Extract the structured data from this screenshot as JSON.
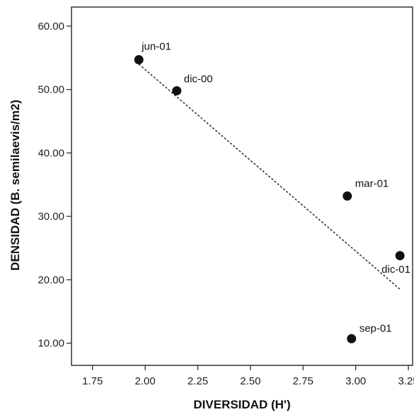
{
  "chart_data": {
    "type": "scatter",
    "title": "",
    "xlabel": "DIVERSIDAD (H')",
    "ylabel": "DENSIDAD (B. semilaevis/m2)",
    "xlim": [
      1.65,
      3.27
    ],
    "ylim": [
      6.5,
      63
    ],
    "xticks": [
      1.75,
      2.0,
      2.25,
      2.5,
      2.75,
      3.0,
      3.25
    ],
    "xtick_labels": [
      "1.75",
      "2.00",
      "2.25",
      "2.50",
      "2.75",
      "3.00",
      "3.25"
    ],
    "yticks": [
      10,
      20,
      30,
      40,
      50,
      60
    ],
    "ytick_labels": [
      "10.00",
      "20.00",
      "30.00",
      "40.00",
      "50.00",
      "60.00"
    ],
    "grid": false,
    "points": [
      {
        "label": "jun-01",
        "x": 1.97,
        "y": 54.7
      },
      {
        "label": "dic-00",
        "x": 2.15,
        "y": 49.8
      },
      {
        "label": "mar-01",
        "x": 2.96,
        "y": 33.2
      },
      {
        "label": "dic-01",
        "x": 3.21,
        "y": 23.8
      },
      {
        "label": "sep-01",
        "x": 2.98,
        "y": 10.7
      }
    ],
    "trendline": {
      "style": "dashed",
      "x": [
        1.97,
        3.21
      ],
      "y": [
        54.0,
        18.5
      ]
    }
  }
}
